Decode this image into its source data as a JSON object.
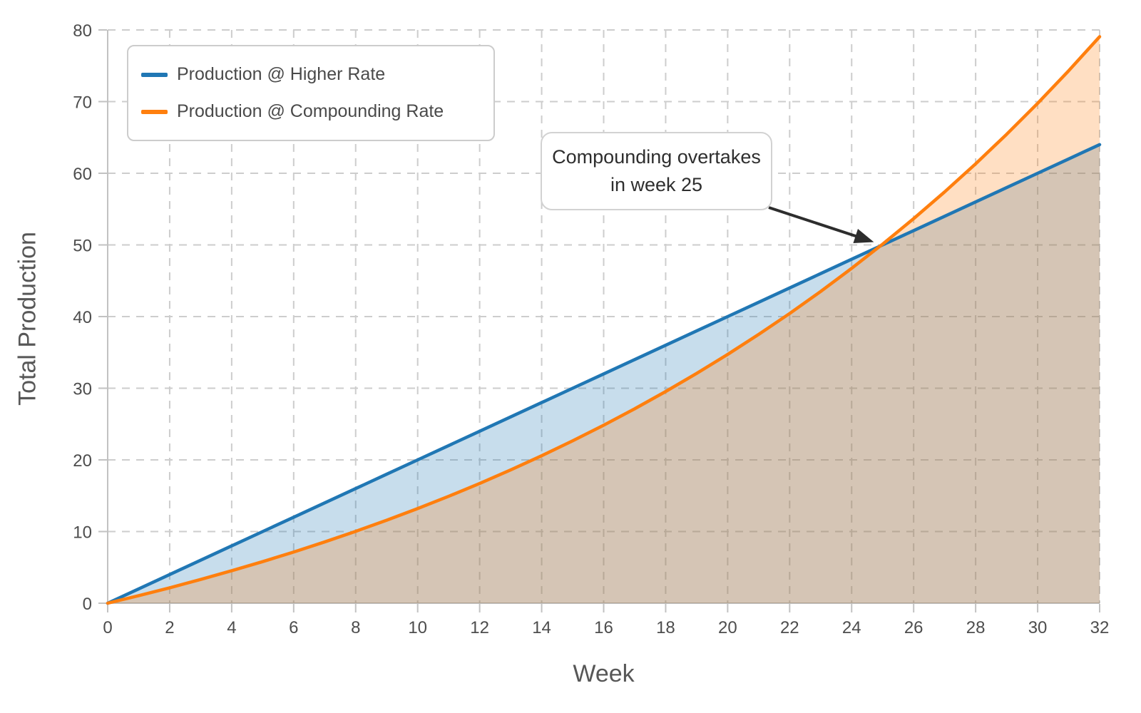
{
  "chart_data": {
    "type": "line",
    "title": "",
    "xlabel": "Week",
    "ylabel": "Total Production",
    "xlim": [
      0,
      32
    ],
    "ylim": [
      0,
      80
    ],
    "xticks": [
      0,
      2,
      4,
      6,
      8,
      10,
      12,
      14,
      16,
      18,
      20,
      22,
      24,
      26,
      28,
      30,
      32
    ],
    "yticks": [
      0,
      10,
      20,
      30,
      40,
      50,
      60,
      70,
      80
    ],
    "grid": true,
    "grid_style": "dashed",
    "legend_position": "upper-left",
    "x": [
      0,
      1,
      2,
      3,
      4,
      5,
      6,
      7,
      8,
      9,
      10,
      11,
      12,
      13,
      14,
      15,
      16,
      17,
      18,
      19,
      20,
      21,
      22,
      23,
      24,
      25,
      26,
      27,
      28,
      29,
      30,
      31,
      32
    ],
    "series": [
      {
        "name": "Production @ Higher Rate",
        "color": "#2077b4",
        "fill": "rgba(31,119,180,0.25)",
        "values": [
          0,
          2,
          4,
          6,
          8,
          10,
          12,
          14,
          16,
          18,
          20,
          22,
          24,
          26,
          28,
          30,
          32,
          34,
          36,
          38,
          40,
          42,
          44,
          46,
          48,
          50,
          52,
          54,
          56,
          58,
          60,
          62,
          64
        ]
      },
      {
        "name": "Production @ Compounding Rate",
        "color": "#ff7f0e",
        "fill": "rgba(255,127,14,0.25)",
        "values": [
          0,
          1.05,
          2.15,
          3.31,
          4.53,
          5.8,
          7.14,
          8.55,
          10.03,
          11.58,
          13.21,
          14.92,
          16.71,
          18.6,
          20.58,
          22.66,
          24.84,
          27.13,
          29.54,
          32.07,
          34.72,
          37.51,
          40.43,
          43.5,
          46.73,
          50.11,
          53.67,
          57.4,
          61.32,
          65.44,
          69.76,
          74.3,
          79.06
        ]
      }
    ],
    "annotation": {
      "line1": "Compounding overtakes",
      "line2": "in week 25",
      "target": {
        "week": 25,
        "value": 50
      },
      "arrow_color": "#2d2d2d"
    },
    "colors": {
      "grid": "#cdcdcd",
      "spine": "#c2c2c2",
      "tick_label": "#4d4d4d",
      "axis_label": "#575757"
    }
  }
}
